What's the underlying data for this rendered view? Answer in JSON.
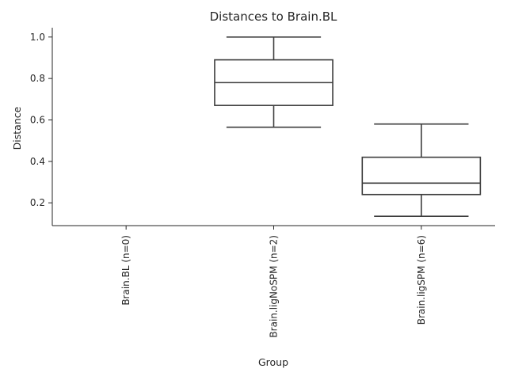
{
  "chart_data": {
    "type": "box",
    "title": "Distances to Brain.BL",
    "xlabel": "Group",
    "ylabel": "Distance",
    "ylim": [
      0.09,
      1.045
    ],
    "yticks": [
      0.2,
      0.4,
      0.6,
      0.8,
      1.0
    ],
    "ytick_labels": [
      "0.2",
      "0.4",
      "0.6",
      "0.8",
      "1.0"
    ],
    "grid": false,
    "categories": [
      "Brain.BL (n=0)",
      "Brain.ligNoSPM (n=2)",
      "Brain.ligSPM (n=6)"
    ],
    "boxes": [
      null,
      {
        "whislo": 0.565,
        "q1": 0.67,
        "med": 0.78,
        "q3": 0.89,
        "whishi": 1.0
      },
      {
        "whislo": 0.135,
        "q1": 0.24,
        "med": 0.295,
        "q3": 0.42,
        "whishi": 0.58
      }
    ],
    "colors": {
      "box_edge": "#3d3d3d",
      "axis": "#262626",
      "background": "#ffffff"
    }
  }
}
